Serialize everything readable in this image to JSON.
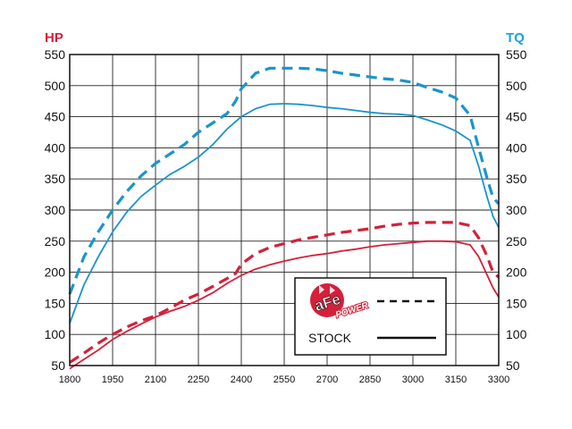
{
  "chart_data": {
    "type": "line",
    "x_ticks": [
      1800,
      1950,
      2100,
      2250,
      2400,
      2550,
      2700,
      2850,
      3000,
      3150,
      3300
    ],
    "y_ticks": [
      50,
      100,
      150,
      200,
      250,
      300,
      350,
      400,
      450,
      500,
      550
    ],
    "xlim": [
      1800,
      3300
    ],
    "ylim": [
      50,
      550
    ],
    "left_axis_label": "HP",
    "right_axis_label": "TQ",
    "grid": true,
    "legend_position": "bottom-right",
    "colors": {
      "hp": "#d4203a",
      "tq": "#1a94cc",
      "left_label": "#d4203a",
      "right_label": "#1aa3d9"
    },
    "series": [
      {
        "name": "aFe POWER",
        "metric": "TQ",
        "style": "dashed",
        "x": [
          1800,
          1850,
          1900,
          1950,
          2000,
          2050,
          2100,
          2150,
          2200,
          2250,
          2300,
          2350,
          2380,
          2400,
          2450,
          2500,
          2550,
          2600,
          2650,
          2700,
          2750,
          2800,
          2850,
          2900,
          2950,
          3000,
          3050,
          3100,
          3150,
          3200,
          3230,
          3260,
          3280,
          3300
        ],
        "y": [
          165,
          225,
          265,
          300,
          330,
          355,
          375,
          390,
          405,
          425,
          440,
          455,
          475,
          495,
          520,
          528,
          528,
          528,
          527,
          524,
          520,
          517,
          514,
          511,
          509,
          505,
          497,
          490,
          480,
          452,
          400,
          350,
          320,
          310
        ]
      },
      {
        "name": "STOCK",
        "metric": "TQ",
        "style": "solid",
        "x": [
          1800,
          1850,
          1900,
          1950,
          2000,
          2050,
          2100,
          2150,
          2200,
          2250,
          2300,
          2350,
          2400,
          2450,
          2500,
          2550,
          2600,
          2650,
          2700,
          2750,
          2800,
          2850,
          2900,
          2950,
          3000,
          3050,
          3100,
          3150,
          3200,
          3230,
          3260,
          3280,
          3300
        ],
        "y": [
          118,
          180,
          225,
          265,
          297,
          322,
          340,
          357,
          370,
          385,
          405,
          430,
          450,
          463,
          470,
          471,
          470,
          468,
          465,
          463,
          460,
          457,
          455,
          454,
          452,
          445,
          437,
          427,
          412,
          370,
          320,
          290,
          272
        ]
      },
      {
        "name": "aFe POWER",
        "metric": "HP",
        "style": "dashed",
        "x": [
          1800,
          1850,
          1900,
          1950,
          2000,
          2050,
          2100,
          2150,
          2200,
          2250,
          2300,
          2350,
          2380,
          2400,
          2450,
          2500,
          2550,
          2600,
          2650,
          2700,
          2750,
          2800,
          2850,
          2900,
          2950,
          3000,
          3050,
          3100,
          3150,
          3200,
          3230,
          3260,
          3280,
          3300
        ],
        "y": [
          55,
          70,
          86,
          100,
          112,
          122,
          130,
          142,
          155,
          165,
          177,
          190,
          198,
          213,
          230,
          240,
          246,
          252,
          256,
          260,
          264,
          267,
          270,
          274,
          277,
          279,
          280,
          280,
          280,
          275,
          255,
          225,
          200,
          192
        ]
      },
      {
        "name": "STOCK",
        "metric": "HP",
        "style": "solid",
        "x": [
          1800,
          1850,
          1900,
          1950,
          2000,
          2050,
          2100,
          2150,
          2200,
          2250,
          2300,
          2350,
          2400,
          2450,
          2500,
          2550,
          2600,
          2650,
          2700,
          2750,
          2800,
          2850,
          2900,
          2950,
          3000,
          3050,
          3100,
          3150,
          3200,
          3230,
          3260,
          3280,
          3300
        ],
        "y": [
          45,
          60,
          75,
          92,
          105,
          117,
          128,
          137,
          145,
          155,
          167,
          182,
          195,
          205,
          212,
          218,
          223,
          227,
          230,
          234,
          237,
          241,
          244,
          246,
          248,
          250,
          250,
          249,
          244,
          225,
          195,
          175,
          160
        ]
      }
    ]
  },
  "legend": {
    "afe_logo": {
      "main": "aFe",
      "sub": "POWER",
      "badge_color": "#d4203a"
    },
    "stock_label": "STOCK"
  }
}
